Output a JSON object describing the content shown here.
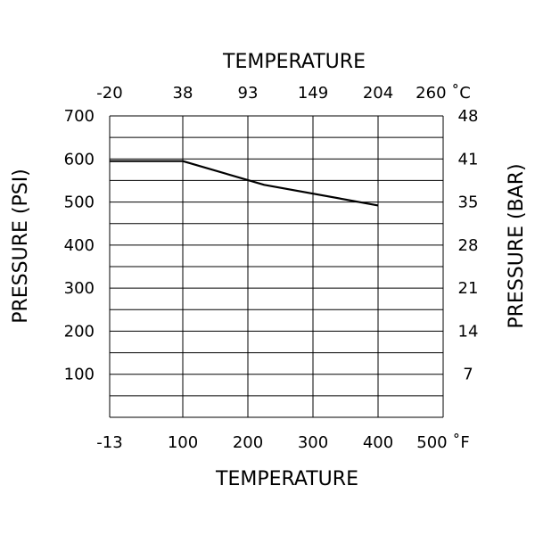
{
  "chart_data": {
    "type": "line",
    "title": "",
    "top_axis_title": "TEMPERATURE",
    "bottom_axis_title": "TEMPERATURE",
    "left_axis_title": "PRESSURE (PSI)",
    "right_axis_title": "PRESSURE (BAR)",
    "x_bottom": {
      "unit": "°F",
      "ticks": [
        -13,
        100,
        200,
        300,
        400,
        500
      ],
      "tick_labels": [
        "-13",
        "100",
        "200",
        "300",
        "400",
        "500 ˚F"
      ]
    },
    "x_top": {
      "unit": "°C",
      "ticks": [
        -20,
        38,
        93,
        149,
        204,
        260
      ],
      "tick_labels": [
        "-20",
        "38",
        "93",
        "149",
        "204",
        "260 ˚C"
      ]
    },
    "y_left": {
      "unit": "PSI",
      "range": [
        0,
        700
      ],
      "ticks": [
        100,
        200,
        300,
        400,
        500,
        600,
        700
      ],
      "tick_labels": [
        "100",
        "200",
        "300",
        "400",
        "500",
        "600",
        "700"
      ]
    },
    "y_right": {
      "unit": "BAR",
      "tick_labels": [
        "7",
        "14",
        "21",
        "28",
        "35",
        "41",
        "48"
      ]
    },
    "grid": true,
    "series": [
      {
        "x": [
          -13,
          100,
          225,
          400
        ],
        "y": [
          595,
          595,
          540,
          492
        ]
      }
    ]
  }
}
